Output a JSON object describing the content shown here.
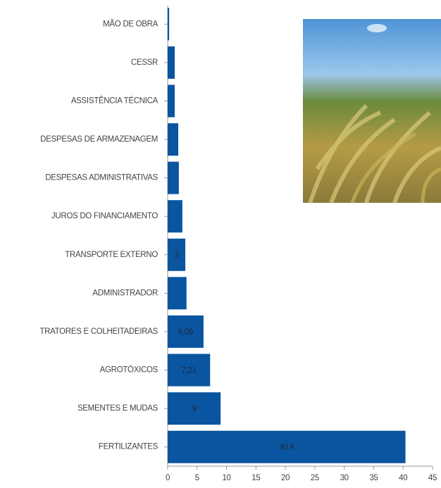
{
  "chart_data": {
    "type": "bar",
    "orientation": "horizontal",
    "categories": [
      "MÃO DE OBRA",
      "CESSR",
      "ASSISTÊNCIA TÉCNICA",
      "DESPESAS DE ARMAZENAGEM",
      "DESPESAS ADMINISTRATIVAS",
      "JUROS DO FINANCIAMENTO",
      "TRANSPORTE EXTERNO",
      "ADMINISTRADOR",
      "TRATORES E COLHEITADEIRAS",
      "AGROTÓXICOS",
      "SEMENTES E MUDAS",
      "FERTILIZANTES"
    ],
    "values": [
      0.25,
      1.2,
      1.2,
      1.8,
      1.9,
      2.5,
      3,
      3.2,
      6.09,
      7.21,
      9,
      40.4
    ],
    "value_labels": [
      null,
      null,
      null,
      null,
      null,
      null,
      "3",
      null,
      "6,09",
      "7,21",
      "9",
      "40,4"
    ],
    "color": "#0b55a0",
    "xlim": [
      0,
      45
    ],
    "xticks": [
      0,
      5,
      10,
      15,
      20,
      25,
      30,
      35,
      40,
      45
    ]
  }
}
